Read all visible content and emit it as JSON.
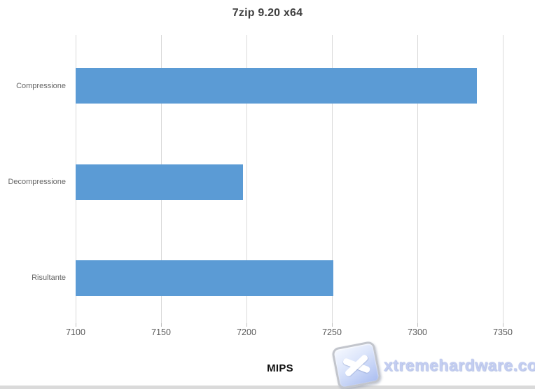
{
  "chart": {
    "watermark": {
      "text": "xtremehardware.com",
      "icon": "x-badge-icon"
    }
  },
  "chart_data": {
    "type": "bar",
    "orientation": "horizontal",
    "title": "7zip 9.20 x64",
    "categories": [
      "Compressione",
      "Decompressione",
      "Risultante"
    ],
    "values": [
      7335,
      7198,
      7251
    ],
    "xlabel": "MIPS",
    "ylabel": "",
    "xlim": [
      7100,
      7350
    ],
    "xticks": [
      7100,
      7150,
      7200,
      7250,
      7300,
      7350
    ],
    "grid": true,
    "legend": false,
    "bar_color": "#5b9bd5",
    "gridline_color": "#d9d9d9",
    "tickmark_color": "#bfbfbf",
    "axis_label_color": "#595959",
    "category_label_color": "#666666",
    "title_color": "#404040"
  }
}
